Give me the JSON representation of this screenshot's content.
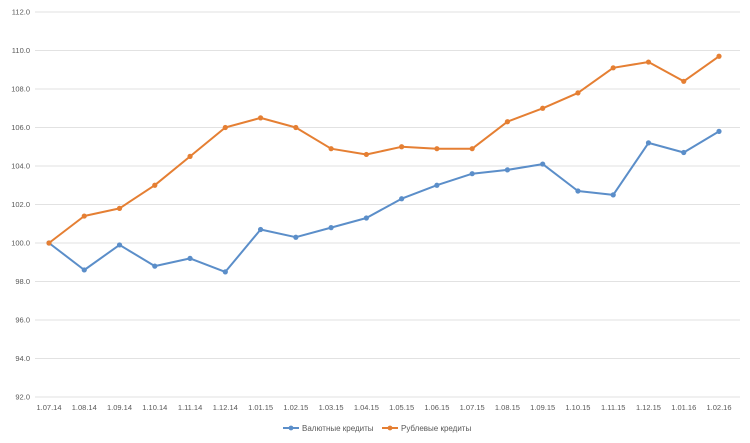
{
  "chart_data": {
    "type": "line",
    "title": "",
    "xlabel": "",
    "ylabel": "",
    "ylim": [
      92.0,
      112.0
    ],
    "y_ticks": [
      "92.0",
      "94.0",
      "96.0",
      "98.0",
      "100.0",
      "102.0",
      "104.0",
      "106.0",
      "108.0",
      "110.0",
      "112.0"
    ],
    "grid": "horizontal",
    "legend_position": "bottom-center",
    "categories": [
      "1.07.14",
      "1.08.14",
      "1.09.14",
      "1.10.14",
      "1.11.14",
      "1.12.14",
      "1.01.15",
      "1.02.15",
      "1.03.15",
      "1.04.15",
      "1.05.15",
      "1.06.15",
      "1.07.15",
      "1.08.15",
      "1.09.15",
      "1.10.15",
      "1.11.15",
      "1.12.15",
      "1.01.16",
      "1.02.16"
    ],
    "series": [
      {
        "name": "Валютные кредиты",
        "color": "#5b8ec9",
        "values": [
          100.0,
          98.6,
          99.9,
          98.8,
          99.2,
          98.5,
          100.7,
          100.3,
          100.8,
          101.3,
          102.3,
          103.0,
          103.6,
          103.8,
          104.1,
          102.7,
          102.5,
          105.2,
          104.7,
          105.8
        ]
      },
      {
        "name": "Рублевые кредиты",
        "color": "#e57f33",
        "values": [
          100.0,
          101.4,
          101.8,
          103.0,
          104.5,
          106.0,
          106.5,
          106.0,
          104.9,
          104.6,
          105.0,
          104.9,
          104.9,
          106.3,
          107.0,
          107.8,
          109.1,
          109.4,
          108.4,
          109.7
        ]
      }
    ]
  },
  "style": {
    "gridline_color": "#d9d9d9",
    "tick_color": "#595959"
  }
}
